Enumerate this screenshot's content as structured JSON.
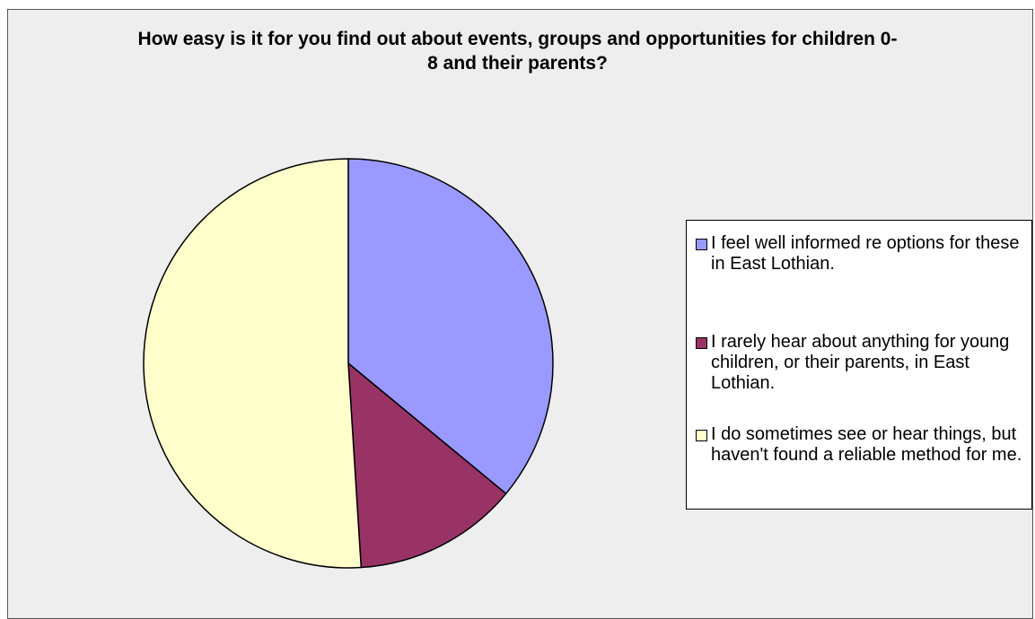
{
  "chart_data": {
    "type": "pie",
    "title": "How easy is it for you find out about events, groups and opportunities for children 0-8 and their parents?",
    "series": [
      {
        "name": "I feel well informed re options for these in East Lothian.",
        "value": 36,
        "color": "#9999ff"
      },
      {
        "name": "I rarely hear about anything for young children, or their parents, in East Lothian.",
        "value": 13,
        "color": "#993366"
      },
      {
        "name": "I do sometimes see or hear things, but haven't found a reliable method for me.",
        "value": 51,
        "color": "#ffffcc"
      }
    ],
    "legend_position": "right",
    "background_color": "#eeeeee"
  }
}
